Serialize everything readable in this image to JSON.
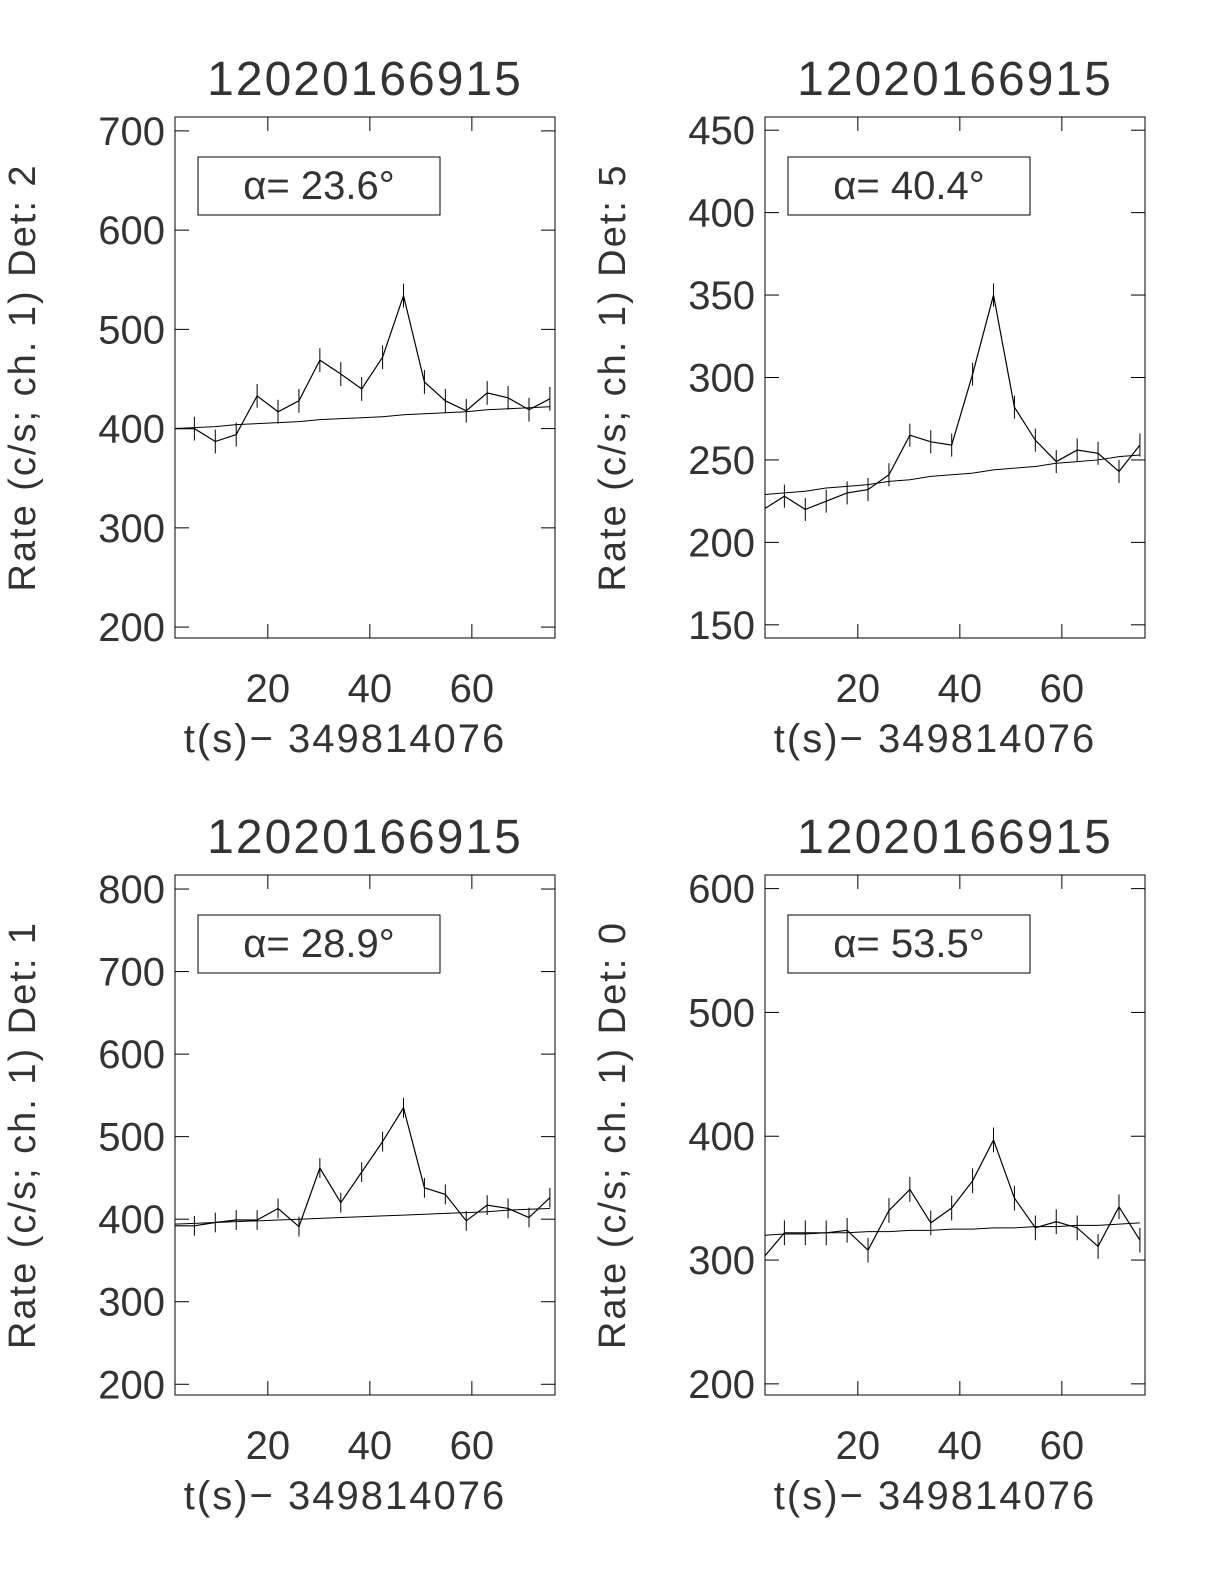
{
  "chart_data": [
    {
      "type": "line",
      "title": "12020166915",
      "y_label": "Rate (c/s; ch. 1) Det: 2",
      "x_label": "t(s)− 349814076",
      "annotation": "α= 23.6°",
      "color": "#000000",
      "x": [
        1.5,
        5.6,
        9.7,
        13.8,
        17.9,
        22.0,
        26.1,
        30.2,
        34.3,
        38.4,
        42.5,
        46.6,
        50.7,
        54.8,
        58.9,
        63.0,
        67.1,
        71.2,
        75.3
      ],
      "values": [
        400,
        400,
        387,
        394,
        433,
        417,
        428,
        469,
        455,
        440,
        472,
        534,
        447,
        428,
        418,
        436,
        431,
        419,
        430
      ],
      "errors": [
        12,
        12,
        12,
        12,
        12,
        12,
        12,
        12,
        12,
        12,
        12,
        12,
        12,
        12,
        12,
        12,
        12,
        12,
        12
      ],
      "fit_values": [
        400,
        401,
        402,
        404,
        405,
        406,
        407,
        409,
        410,
        411,
        412,
        414,
        415,
        416,
        417,
        419,
        420,
        421,
        422
      ],
      "xlim": [
        1.8,
        76.3
      ],
      "ylim": [
        189,
        714
      ],
      "xticks": [
        20,
        40,
        60
      ],
      "yticks": [
        200,
        300,
        400,
        500,
        600,
        700
      ]
    },
    {
      "type": "line",
      "title": "12020166915",
      "y_label": "Rate (c/s; ch. 1) Det: 5",
      "x_label": "t(s)− 349814076",
      "annotation": "α= 40.4°",
      "color": "#000000",
      "x": [
        1.5,
        5.6,
        9.7,
        13.8,
        17.9,
        22.0,
        26.1,
        30.2,
        34.3,
        38.4,
        42.5,
        46.6,
        50.7,
        54.8,
        58.9,
        63.0,
        67.1,
        71.2,
        75.3
      ],
      "values": [
        220,
        228,
        220,
        225,
        230,
        232,
        241,
        265,
        261,
        259,
        302,
        350,
        282,
        262,
        249,
        256,
        254,
        243,
        259
      ],
      "errors": [
        7,
        7,
        7,
        7,
        7,
        7,
        7,
        7,
        7,
        7,
        7,
        7,
        7,
        7,
        7,
        7,
        7,
        7,
        7
      ],
      "fit_values": [
        229,
        230,
        231,
        233,
        234,
        235,
        237,
        238,
        240,
        241,
        242,
        244,
        245,
        246,
        248,
        249,
        250,
        252,
        253
      ],
      "xlim": [
        1.8,
        76.3
      ],
      "ylim": [
        142,
        458
      ],
      "xticks": [
        20,
        40,
        60
      ],
      "yticks": [
        150,
        200,
        250,
        300,
        350,
        400,
        450
      ]
    },
    {
      "type": "line",
      "title": "12020166915",
      "y_label": "Rate (c/s; ch. 1) Det: 1",
      "x_label": "t(s)− 349814076",
      "annotation": "α= 28.9°",
      "color": "#000000",
      "x": [
        1.5,
        5.6,
        9.7,
        13.8,
        17.9,
        22.0,
        26.1,
        30.2,
        34.3,
        38.4,
        42.5,
        46.6,
        50.7,
        54.8,
        58.9,
        63.0,
        67.1,
        71.2,
        75.3
      ],
      "values": [
        392,
        392,
        396,
        399,
        399,
        413,
        391,
        462,
        420,
        457,
        494,
        535,
        438,
        430,
        398,
        417,
        413,
        402,
        426
      ],
      "errors": [
        12,
        12,
        12,
        12,
        12,
        12,
        12,
        12,
        12,
        12,
        12,
        12,
        12,
        12,
        12,
        12,
        12,
        12,
        12
      ],
      "fit_values": [
        394,
        395,
        396,
        397,
        398,
        399,
        400,
        401,
        402,
        403,
        404,
        405,
        406,
        407,
        408,
        409,
        411,
        412,
        413
      ],
      "xlim": [
        1.8,
        76.3
      ],
      "ylim": [
        187,
        817
      ],
      "xticks": [
        20,
        40,
        60
      ],
      "yticks": [
        200,
        300,
        400,
        500,
        600,
        700,
        800
      ]
    },
    {
      "type": "line",
      "title": "12020166915",
      "y_label": "Rate (c/s; ch. 1) Det: 0",
      "x_label": "t(s)− 349814076",
      "annotation": "α= 53.5°",
      "color": "#000000",
      "x": [
        1.5,
        5.6,
        9.7,
        13.8,
        17.9,
        22.0,
        26.1,
        30.2,
        34.3,
        38.4,
        42.5,
        46.6,
        50.7,
        54.8,
        58.9,
        63.0,
        67.1,
        71.2,
        75.3
      ],
      "values": [
        302,
        322,
        322,
        322,
        324,
        308,
        340,
        357,
        330,
        342,
        364,
        397,
        350,
        326,
        331,
        326,
        311,
        343,
        316
      ],
      "errors": [
        10,
        10,
        10,
        10,
        10,
        10,
        10,
        10,
        10,
        10,
        10,
        10,
        10,
        10,
        10,
        10,
        10,
        10,
        10
      ],
      "fit_values": [
        320,
        321,
        321,
        322,
        322,
        323,
        323,
        324,
        324,
        325,
        325,
        326,
        326,
        327,
        327,
        328,
        328,
        329,
        330
      ],
      "xlim": [
        1.8,
        76.3
      ],
      "ylim": [
        191,
        611
      ],
      "xticks": [
        20,
        40,
        60
      ],
      "yticks": [
        200,
        300,
        400,
        500,
        600
      ]
    }
  ]
}
